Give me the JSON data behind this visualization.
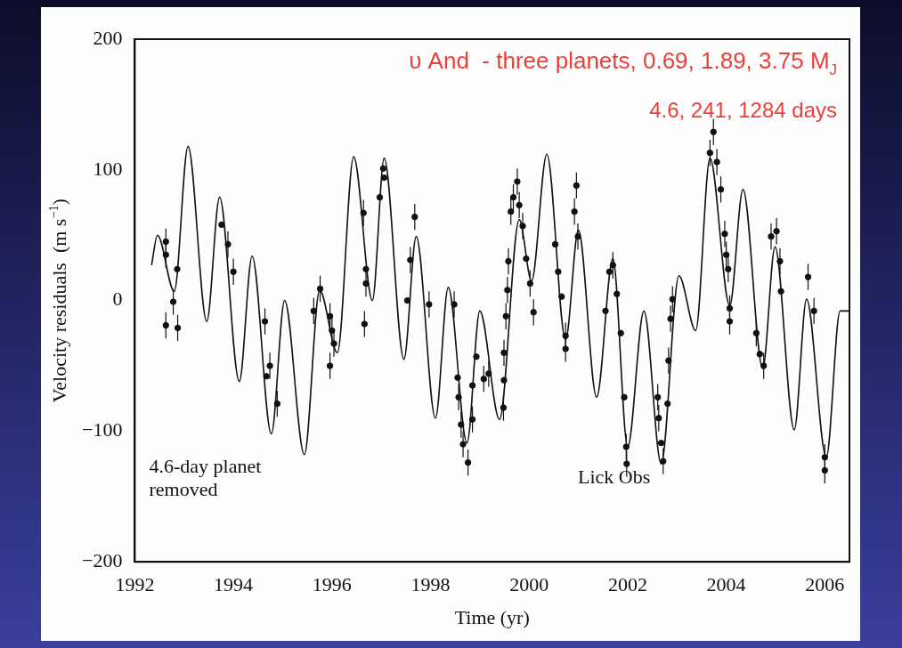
{
  "chart_data": {
    "type": "scatter",
    "title": "υ And  - three planets, 0.69, 1.89, 3.75 M$_{J}$",
    "subtitle": "4.6, 241, 1284 days",
    "xlabel": "Time (yr)",
    "ylabel": "Velocity residuals  (m s$^{−1}$)",
    "xlim": [
      1992,
      2006.5
    ],
    "xticks": [
      1992,
      1994,
      1996,
      1998,
      2000,
      2002,
      2004,
      2006
    ],
    "ylim": [
      -200,
      200
    ],
    "yticks": [
      {
        "value": -200,
        "label": "−200"
      },
      {
        "value": -100,
        "label": "−100"
      },
      0,
      100,
      200
    ],
    "grid": false,
    "legend": false,
    "annotations": [
      "4.6-day planet\nremoved",
      "Lick Obs"
    ],
    "series": [
      {
        "type": "line",
        "marker": "none",
        "color": "#111111",
        "x": [
          1992.34,
          1992.46,
          1992.8,
          1993.08,
          1993.46,
          1993.72,
          1994.12,
          1994.38,
          1994.77,
          1995.04,
          1995.44,
          1995.75,
          1996.11,
          1996.44,
          1996.82,
          1997.06,
          1997.46,
          1997.71,
          1998.1,
          1998.36,
          1998.74,
          1999.0,
          1999.4,
          1999.8,
          2000.05,
          2000.36,
          2000.74,
          2001.0,
          2001.37,
          2001.7,
          2002.0,
          2002.33,
          2002.68,
          2003.04,
          2003.38,
          2003.67,
          2004.07,
          2004.34,
          2004.74,
          2004.99,
          2005.38,
          2005.63,
          2006.03,
          2006.31,
          2006.49
        ],
        "values": [
          27,
          50,
          7,
          118,
          -16,
          79,
          -62,
          34,
          -102,
          0,
          -118,
          8,
          -40,
          110,
          0,
          109,
          -45,
          49,
          -90,
          10,
          -109,
          -8,
          -91,
          62,
          15,
          112,
          -30,
          54,
          -74,
          32,
          -112,
          -8,
          -125,
          19,
          -23,
          109,
          -4,
          85,
          -52,
          41,
          -99,
          1,
          -120,
          -8,
          -8
        ]
      },
      {
        "type": "scatter",
        "marker": "circle",
        "color": "#111111",
        "x": [
          1992.63,
          1992.63,
          1992.63,
          1992.78,
          1992.86,
          1992.87,
          1993.76,
          1993.89,
          1994.0,
          1994.64,
          1994.67,
          1994.74,
          1994.89,
          1995.63,
          1995.76,
          1995.96,
          1996.0,
          1996.04,
          1995.96,
          1996.64,
          1996.69,
          1996.69,
          1996.66,
          1996.97,
          1997.04,
          1997.06,
          1997.53,
          1997.59,
          1997.68,
          1997.97,
          1998.48,
          1998.55,
          1998.57,
          1998.62,
          1998.66,
          1998.76,
          1998.85,
          1998.85,
          1998.93,
          1999.08,
          1999.18,
          1999.48,
          1999.49,
          1999.49,
          1999.53,
          1999.56,
          1999.58,
          1999.63,
          1999.68,
          1999.76,
          1999.8,
          1999.87,
          1999.94,
          2000.02,
          2000.09,
          2000.53,
          2000.59,
          2000.66,
          2000.74,
          2000.74,
          2000.92,
          2000.96,
          2000.99,
          2001.55,
          2001.63,
          2001.7,
          2001.78,
          2001.86,
          2001.93,
          2001.97,
          2001.98,
          2002.61,
          2002.63,
          2002.68,
          2002.72,
          2002.81,
          2002.83,
          2002.87,
          2002.91,
          2003.67,
          2003.74,
          2003.81,
          2003.89,
          2003.97,
          2004.0,
          2004.04,
          2004.07,
          2004.07,
          2004.61,
          2004.68,
          2004.76,
          2004.91,
          2005.02,
          2005.09,
          2005.11,
          2005.66,
          2005.78,
          2006.0,
          2006.0
        ],
        "values": [
          45,
          35,
          -19,
          -1,
          24,
          -21,
          58,
          43,
          22,
          -16,
          -58,
          -50,
          -79,
          -8,
          9,
          -12,
          -23,
          -33,
          -50,
          67,
          24,
          13,
          -18,
          79,
          101,
          94,
          0,
          31,
          64,
          -3,
          -3,
          -59,
          -74,
          -95,
          -110,
          -124,
          -65,
          -91,
          -43,
          -60,
          -56,
          -82,
          -61,
          -40,
          -12,
          8,
          30,
          68,
          79,
          91,
          73,
          57,
          32,
          13,
          -9,
          43,
          22,
          3,
          -27,
          -37,
          68,
          88,
          49,
          -8,
          22,
          27,
          5,
          -25,
          -74,
          -112,
          -125,
          -74,
          -90,
          -109,
          -123,
          -79,
          -46,
          -14,
          1,
          113,
          129,
          106,
          85,
          51,
          35,
          24,
          -6,
          -16,
          -25,
          -41,
          -50,
          49,
          53,
          30,
          7,
          18,
          -8,
          -130,
          -120
        ],
        "errors": [
          10,
          10,
          10,
          10,
          null,
          10,
          null,
          10,
          10,
          10,
          null,
          10,
          10,
          10,
          10,
          10,
          10,
          10,
          10,
          10,
          null,
          10,
          10,
          null,
          null,
          null,
          null,
          10,
          10,
          10,
          10,
          null,
          10,
          10,
          10,
          10,
          null,
          10,
          null,
          10,
          10,
          10,
          null,
          10,
          10,
          10,
          10,
          10,
          10,
          10,
          10,
          10,
          null,
          10,
          10,
          null,
          null,
          null,
          10,
          10,
          10,
          10,
          10,
          null,
          null,
          10,
          null,
          null,
          null,
          10,
          10,
          10,
          10,
          null,
          10,
          null,
          10,
          10,
          10,
          10,
          10,
          10,
          10,
          10,
          10,
          10,
          10,
          10,
          10,
          null,
          10,
          10,
          10,
          10,
          null,
          10,
          10,
          10,
          10
        ]
      }
    ]
  }
}
